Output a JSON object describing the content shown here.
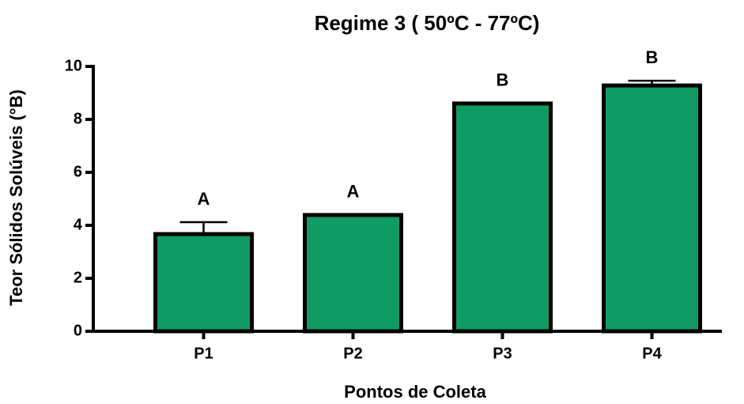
{
  "chart_data": {
    "type": "bar",
    "title": "Regime 3 ( 50ºC - 77ºC)",
    "x_label": "Pontos de Coleta",
    "y_label": "Teor Sólidos Solúveis (°B)",
    "categories": [
      "P1",
      "P2",
      "P3",
      "P4"
    ],
    "values": [
      3.67,
      4.39,
      8.6,
      9.28
    ],
    "errors": [
      0.45,
      0,
      0,
      0.18
    ],
    "annotations": [
      "A",
      "A",
      "B",
      "B"
    ],
    "color": "#109a64",
    "ylim": [
      0,
      10
    ],
    "yticks": [
      0,
      2,
      4,
      6,
      8,
      10
    ],
    "grid": false
  }
}
